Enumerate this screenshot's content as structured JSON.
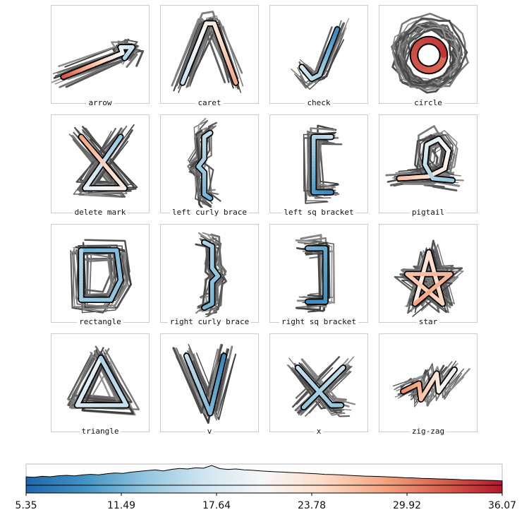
{
  "chart_data": {
    "type": "small-multiples",
    "panels": [
      {
        "label": "arrow"
      },
      {
        "label": "caret"
      },
      {
        "label": "check"
      },
      {
        "label": "circle"
      },
      {
        "label": "delete mark"
      },
      {
        "label": "left curly brace"
      },
      {
        "label": "left sq bracket"
      },
      {
        "label": "pigtail"
      },
      {
        "label": "rectangle"
      },
      {
        "label": "right curly brace"
      },
      {
        "label": "right sq bracket"
      },
      {
        "label": "star"
      },
      {
        "label": "triangle"
      },
      {
        "label": "v"
      },
      {
        "label": "x"
      },
      {
        "label": "zig-zag"
      }
    ],
    "colorbar": {
      "ticks": [
        "5.35",
        "11.49",
        "17.64",
        "23.78",
        "29.92",
        "36.07"
      ],
      "range": [
        5.35,
        36.07
      ],
      "colormap": [
        "#2166ac",
        "#4393c3",
        "#92c5de",
        "#d1e5f0",
        "#f7f7f7",
        "#fddbc7",
        "#f4a582",
        "#d6604d",
        "#b2182b"
      ],
      "histogram": [
        0.42,
        0.4,
        0.45,
        0.43,
        0.48,
        0.5,
        0.47,
        0.52,
        0.55,
        0.53,
        0.58,
        0.62,
        0.6,
        0.66,
        0.7,
        0.74,
        0.78,
        0.72,
        0.8,
        0.85,
        0.82,
        0.88,
        0.86,
        1.0,
        0.84,
        0.8,
        0.82,
        0.78,
        0.76,
        0.72,
        0.7,
        0.68,
        0.66,
        0.64,
        0.62,
        0.6,
        0.58,
        0.55,
        0.54,
        0.52,
        0.5,
        0.48,
        0.46,
        0.45,
        0.44,
        0.42,
        0.4,
        0.38,
        0.37,
        0.35,
        0.34,
        0.32,
        0.31,
        0.3,
        0.28,
        0.27,
        0.26,
        0.25,
        0.24,
        0.22
      ]
    }
  }
}
